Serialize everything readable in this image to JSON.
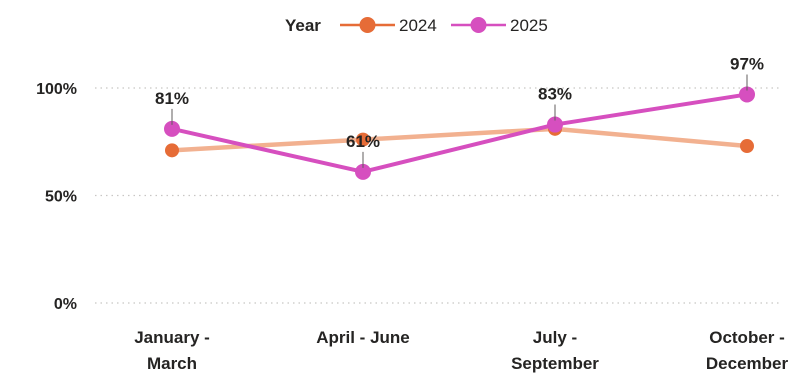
{
  "chart_data": {
    "type": "line",
    "legend": {
      "title": "Year",
      "placement": "top-center"
    },
    "categories": [
      [
        "January -",
        "March"
      ],
      [
        "April - June"
      ],
      [
        "July -",
        "September"
      ],
      [
        "October -",
        "December"
      ]
    ],
    "ylim": [
      0,
      100
    ],
    "yticks": [
      {
        "value": 0,
        "label": "0%"
      },
      {
        "value": 50,
        "label": "50%"
      },
      {
        "value": 100,
        "label": "100%"
      }
    ],
    "grid": true,
    "series": [
      {
        "name": "2024",
        "color": "#E66C37",
        "line_color": "#F2B190",
        "values": [
          71,
          76,
          81,
          73
        ],
        "labels": []
      },
      {
        "name": "2025",
        "color": "#D64FBF",
        "line_color": "#D64FBF",
        "values": [
          81,
          61,
          83,
          97
        ],
        "labels": [
          "81%",
          "61%",
          "83%",
          "97%"
        ]
      }
    ]
  }
}
